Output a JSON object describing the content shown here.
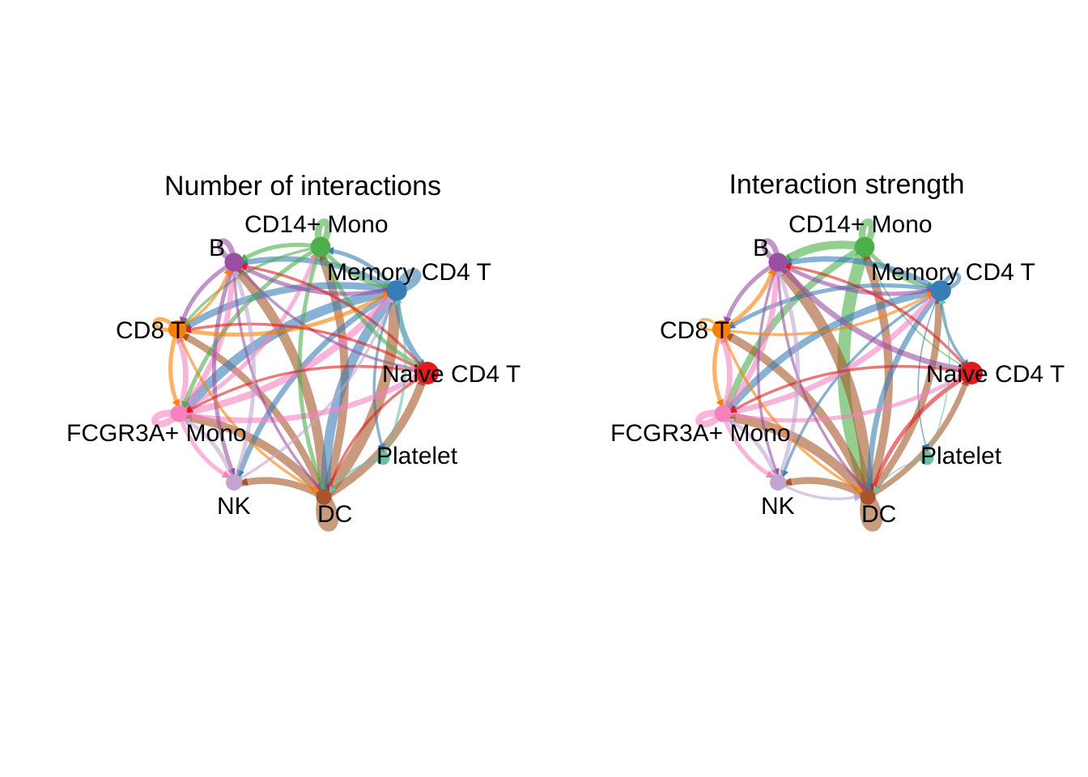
{
  "nodes": [
    {
      "id": "naive",
      "label": "Naive CD4 T",
      "color": "#E41A1C",
      "group_size": 1.0
    },
    {
      "id": "memory",
      "label": "Memory CD4 T",
      "color": "#377EB8",
      "group_size": 0.85
    },
    {
      "id": "cd14",
      "label": "CD14+ Mono",
      "color": "#4DAF4A",
      "group_size": 0.8
    },
    {
      "id": "b",
      "label": "B",
      "color": "#984EA3",
      "group_size": 0.7
    },
    {
      "id": "cd8",
      "label": "CD8 T",
      "color": "#FF7F00",
      "group_size": 0.65
    },
    {
      "id": "fcgr3a",
      "label": "FCGR3A+ Mono",
      "color": "#F781BF",
      "group_size": 0.55
    },
    {
      "id": "nk",
      "label": "NK",
      "color": "#C2A5CF",
      "group_size": 0.5
    },
    {
      "id": "dc",
      "label": "DC",
      "color": "#A65628",
      "group_size": 0.45
    },
    {
      "id": "platelet",
      "label": "Platelet",
      "color": "#66C2A5",
      "group_size": 0.3
    }
  ],
  "panels": [
    {
      "title": "Number of interactions",
      "edges": [
        [
          "dc",
          "dc",
          9
        ],
        [
          "memory",
          "memory",
          6
        ],
        [
          "cd14",
          "cd14",
          5
        ],
        [
          "b",
          "b",
          4
        ],
        [
          "cd8",
          "cd8",
          3
        ],
        [
          "fcgr3a",
          "fcgr3a",
          5
        ],
        [
          "dc",
          "memory",
          8
        ],
        [
          "dc",
          "b",
          7
        ],
        [
          "dc",
          "cd14",
          6
        ],
        [
          "dc",
          "naive",
          6
        ],
        [
          "dc",
          "fcgr3a",
          6
        ],
        [
          "dc",
          "cd8",
          5
        ],
        [
          "dc",
          "nk",
          5
        ],
        [
          "memory",
          "fcgr3a",
          7
        ],
        [
          "memory",
          "dc",
          7
        ],
        [
          "memory",
          "cd8",
          5
        ],
        [
          "memory",
          "b",
          4
        ],
        [
          "memory",
          "naive",
          4
        ],
        [
          "memory",
          "nk",
          4
        ],
        [
          "memory",
          "platelet",
          2
        ],
        [
          "memory",
          "cd14",
          3
        ],
        [
          "fcgr3a",
          "memory",
          5
        ],
        [
          "fcgr3a",
          "naive",
          4
        ],
        [
          "fcgr3a",
          "b",
          4
        ],
        [
          "fcgr3a",
          "cd8",
          4
        ],
        [
          "fcgr3a",
          "cd14",
          3
        ],
        [
          "fcgr3a",
          "nk",
          3
        ],
        [
          "cd14",
          "b",
          3
        ],
        [
          "cd14",
          "dc",
          3
        ],
        [
          "cd14",
          "fcgr3a",
          3
        ],
        [
          "cd14",
          "naive",
          3
        ],
        [
          "cd14",
          "cd8",
          2
        ],
        [
          "cd14",
          "memory",
          3
        ],
        [
          "b",
          "memory",
          3
        ],
        [
          "b",
          "cd8",
          3
        ],
        [
          "b",
          "naive",
          2
        ],
        [
          "b",
          "dc",
          2
        ],
        [
          "b",
          "nk",
          3
        ],
        [
          "cd8",
          "memory",
          3
        ],
        [
          "cd8",
          "fcgr3a",
          3
        ],
        [
          "cd8",
          "dc",
          2
        ],
        [
          "cd8",
          "b",
          2
        ],
        [
          "naive",
          "b",
          2
        ],
        [
          "naive",
          "dc",
          2
        ],
        [
          "naive",
          "fcgr3a",
          2
        ],
        [
          "naive",
          "cd8",
          2
        ],
        [
          "nk",
          "fcgr3a",
          3
        ],
        [
          "nk",
          "b",
          3
        ],
        [
          "nk",
          "memory",
          2
        ],
        [
          "platelet",
          "dc",
          2
        ],
        [
          "platelet",
          "memory",
          2
        ]
      ]
    },
    {
      "title": "Interaction strength",
      "edges": [
        [
          "dc",
          "dc",
          9
        ],
        [
          "memory",
          "memory",
          3
        ],
        [
          "cd14",
          "cd14",
          5
        ],
        [
          "b",
          "b",
          4
        ],
        [
          "cd8",
          "cd8",
          2
        ],
        [
          "fcgr3a",
          "fcgr3a",
          5
        ],
        [
          "cd14",
          "dc",
          9
        ],
        [
          "cd14",
          "b",
          6
        ],
        [
          "cd14",
          "fcgr3a",
          5
        ],
        [
          "cd14",
          "memory",
          3
        ],
        [
          "cd14",
          "naive",
          1
        ],
        [
          "dc",
          "b",
          8
        ],
        [
          "dc",
          "memory",
          5
        ],
        [
          "dc",
          "naive",
          4
        ],
        [
          "dc",
          "fcgr3a",
          7
        ],
        [
          "dc",
          "cd8",
          6
        ],
        [
          "dc",
          "nk",
          5
        ],
        [
          "dc",
          "cd14",
          6
        ],
        [
          "memory",
          "fcgr3a",
          5
        ],
        [
          "memory",
          "b",
          4
        ],
        [
          "memory",
          "dc",
          4
        ],
        [
          "memory",
          "cd8",
          3
        ],
        [
          "memory",
          "naive",
          2
        ],
        [
          "memory",
          "platelet",
          1
        ],
        [
          "memory",
          "nk",
          2
        ],
        [
          "fcgr3a",
          "memory",
          4
        ],
        [
          "fcgr3a",
          "naive",
          3
        ],
        [
          "fcgr3a",
          "b",
          4
        ],
        [
          "fcgr3a",
          "cd8",
          4
        ],
        [
          "fcgr3a",
          "nk",
          3
        ],
        [
          "b",
          "naive",
          4
        ],
        [
          "b",
          "memory",
          3
        ],
        [
          "b",
          "cd8",
          3
        ],
        [
          "b",
          "dc",
          2
        ],
        [
          "b",
          "nk",
          2
        ],
        [
          "cd8",
          "b",
          3
        ],
        [
          "cd8",
          "fcgr3a",
          3
        ],
        [
          "cd8",
          "dc",
          2
        ],
        [
          "cd8",
          "memory",
          2
        ],
        [
          "naive",
          "dc",
          3
        ],
        [
          "naive",
          "fcgr3a",
          2
        ],
        [
          "naive",
          "b",
          2
        ],
        [
          "nk",
          "b",
          3
        ],
        [
          "nk",
          "fcgr3a",
          3
        ],
        [
          "nk",
          "dc",
          2
        ],
        [
          "platelet",
          "dc",
          1
        ],
        [
          "platelet",
          "memory",
          1
        ]
      ]
    }
  ]
}
